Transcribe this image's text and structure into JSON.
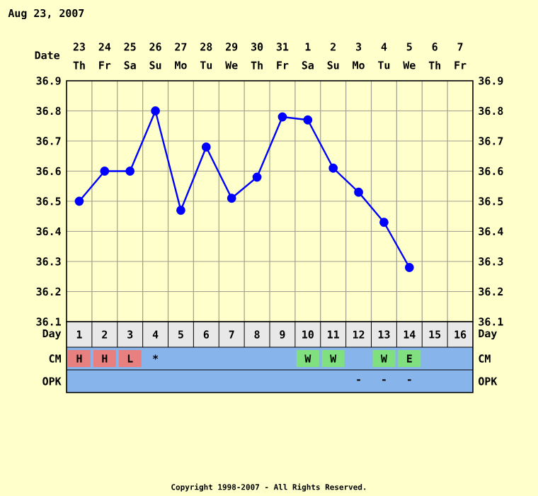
{
  "chart_data": {
    "type": "line",
    "title": "Aug 23, 2007",
    "categories": [
      "1",
      "2",
      "3",
      "4",
      "5",
      "6",
      "7",
      "8",
      "9",
      "10",
      "11",
      "12",
      "13",
      "14",
      "15",
      "16"
    ],
    "series": [
      {
        "color": "#0000ff",
        "values": [
          36.5,
          36.6,
          36.6,
          36.8,
          36.47,
          36.68,
          36.51,
          36.58,
          36.78,
          36.77,
          36.61,
          36.53,
          36.43,
          36.28,
          null,
          null
        ]
      }
    ],
    "ylim": [
      36.1,
      36.9
    ],
    "yticks": [
      36.1,
      36.2,
      36.3,
      36.4,
      36.5,
      36.6,
      36.7,
      36.8,
      36.9
    ],
    "y2lim": [
      36.1,
      36.9
    ],
    "y2ticks": [
      36.1,
      36.2,
      36.3,
      36.4,
      36.5,
      36.6,
      36.7,
      36.8,
      36.9
    ],
    "grid": true,
    "marker": "circle",
    "line_style": "solid",
    "annotations": [
      "Date",
      "23",
      "24",
      "25",
      "26",
      "27",
      "28",
      "29",
      "30",
      "31",
      "1",
      "2",
      "3",
      "4",
      "5",
      "6",
      "7",
      "Th",
      "Fr",
      "Sa",
      "Su",
      "Mo",
      "Tu",
      "We",
      "Th",
      "Fr",
      "Sa",
      "Su",
      "Mo",
      "Tu",
      "We",
      "Th",
      "Fr",
      "Day",
      "CM",
      "OPK",
      "H",
      "H",
      "L",
      "*",
      "W",
      "W",
      "W",
      "E",
      "-",
      "-",
      "-",
      "Copyright 1998-2007 - All Rights Reserved."
    ]
  }
}
